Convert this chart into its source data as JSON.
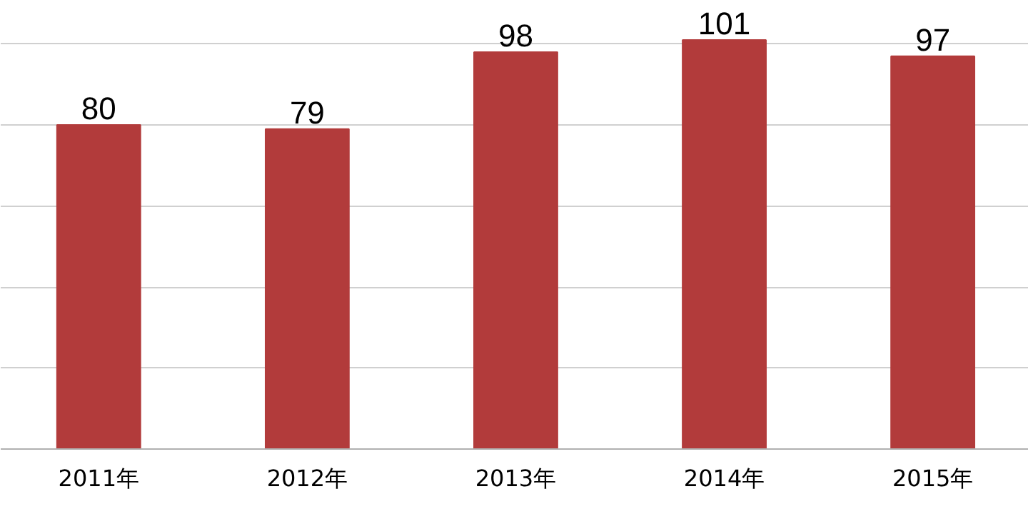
{
  "chart_data": {
    "type": "bar",
    "categories": [
      "2011年",
      "2012年",
      "2013年",
      "2014年",
      "2015年"
    ],
    "values": [
      80,
      79,
      98,
      101,
      97
    ],
    "color": "#b23b3b",
    "data_labels": true,
    "grid": "y",
    "tick_labels": "x"
  }
}
